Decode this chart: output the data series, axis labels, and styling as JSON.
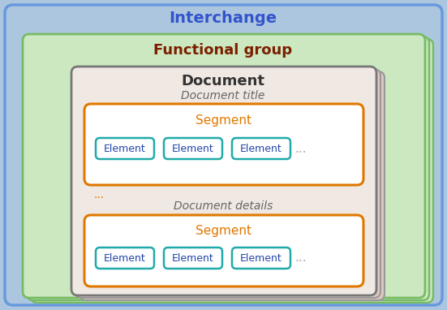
{
  "bg_color": "#adc6e0",
  "interchange_label": "Interchange",
  "interchange_label_color": "#3355cc",
  "interchange_border_color": "#6699dd",
  "func_group_label": "Functional group",
  "func_group_label_color": "#7b1f00",
  "func_group_box_fill": "#cce8c0",
  "func_group_border_color": "#77bb66",
  "document_label": "Document",
  "document_label_color": "#333333",
  "document_box_fill": "#f0e8e2",
  "document_shadow_fill": "#ddc8c0",
  "document_border_color": "#777777",
  "doc_title_label": "Document title",
  "doc_title_label_color": "#666666",
  "doc_details_label": "Document details",
  "doc_details_label_color": "#666666",
  "segment_label": "Segment",
  "segment_label_color": "#e07800",
  "segment_box_fill": "#ffffff",
  "segment_border_color": "#e07800",
  "element_label": "Element",
  "element_label_color": "#2244aa",
  "element_box_fill": "#ffffff",
  "element_border_color": "#22aaaa",
  "ellipsis_color": "#aaaaaa",
  "dots_color": "#e07800"
}
